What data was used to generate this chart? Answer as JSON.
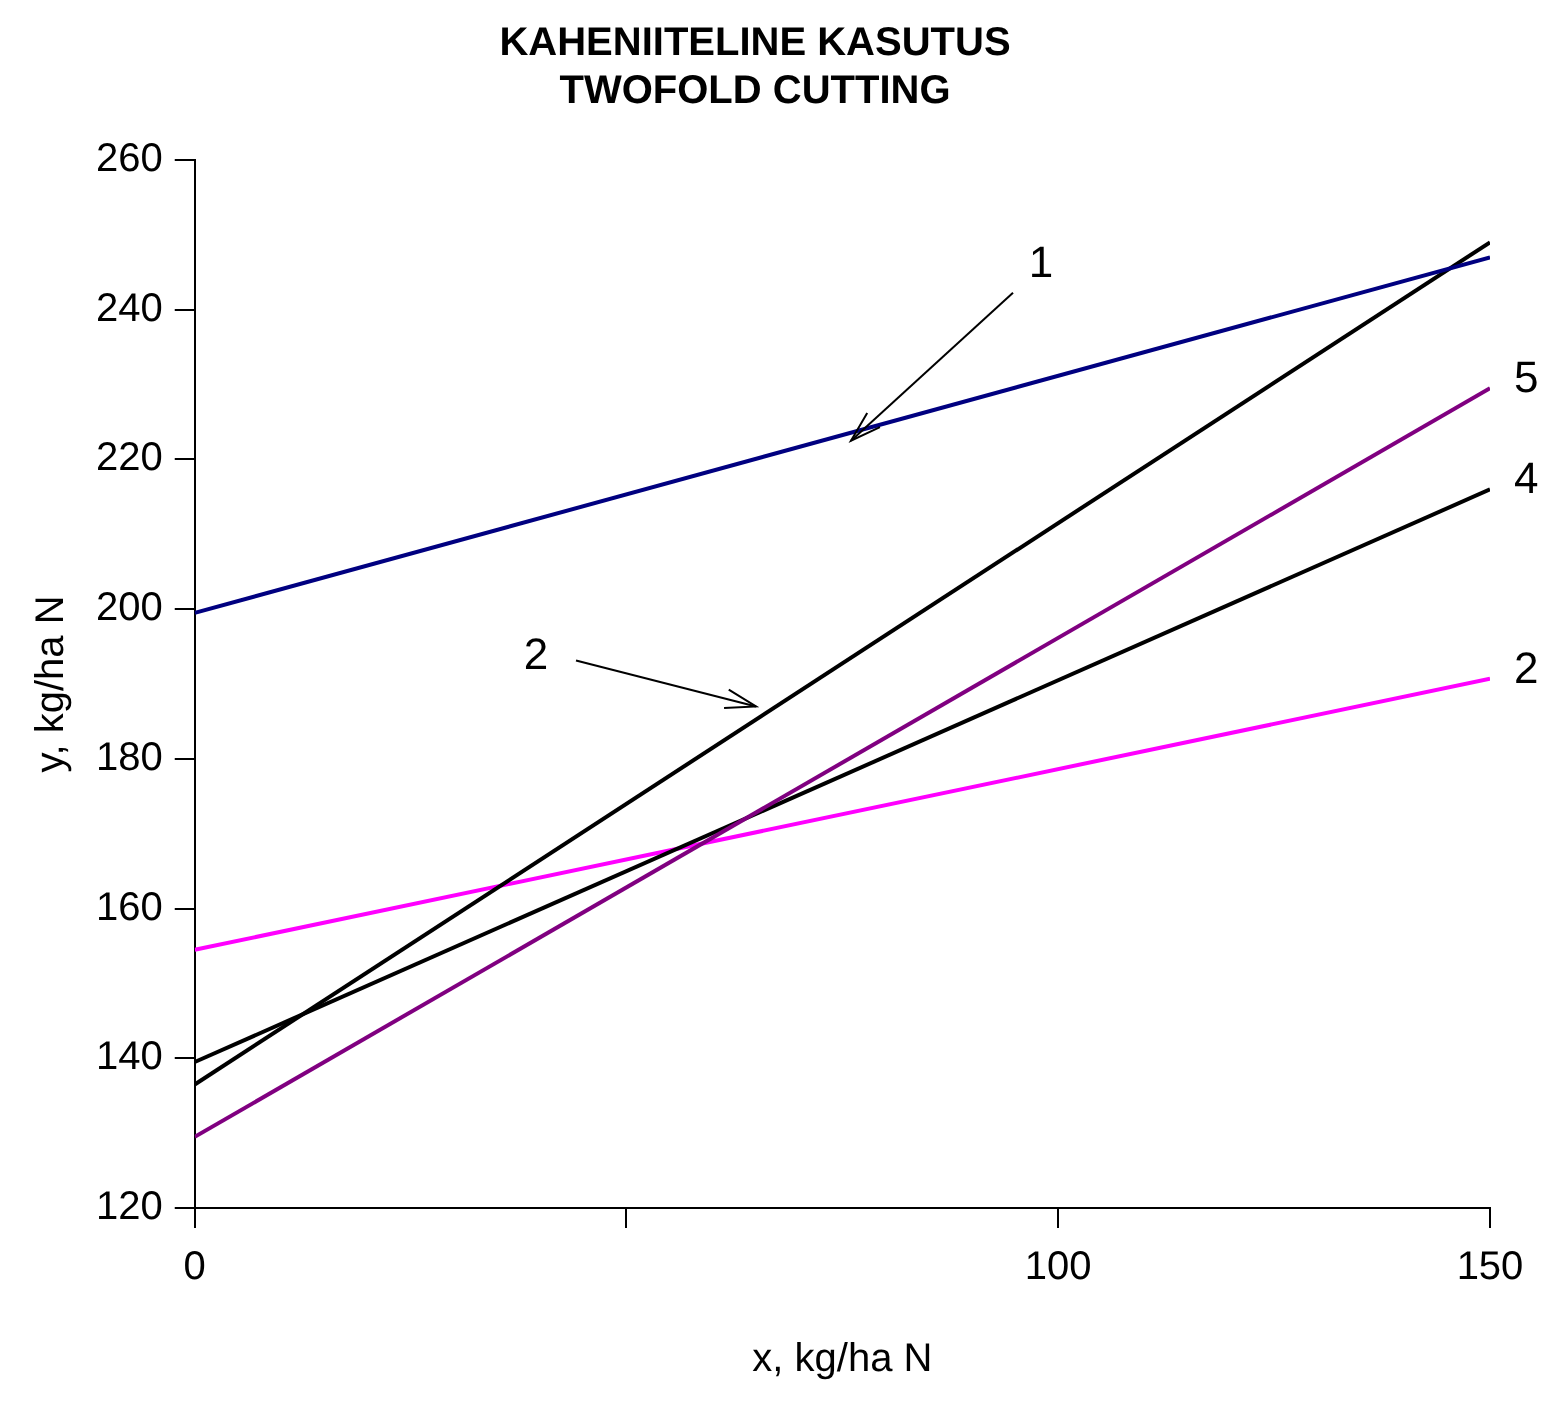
{
  "chart_data": {
    "type": "line",
    "title": "KAHENIITELINE KASUTUS\nTWOFOLD CUTTING",
    "xlabel": "x, kg/ha N",
    "ylabel": "y, kg/ha N",
    "x": [
      0,
      150
    ],
    "series": [
      {
        "color": "#000080",
        "values": [
          199.5,
          247
        ]
      },
      {
        "color": "#000000",
        "values": [
          136.5,
          249
        ]
      },
      {
        "color": "#800080",
        "values": [
          129.5,
          229.5
        ]
      },
      {
        "color": "#000000",
        "values": [
          139.5,
          216
        ]
      },
      {
        "color": "#ff00ff",
        "values": [
          154.5,
          190.7
        ]
      }
    ],
    "xlim": [
      0,
      150
    ],
    "xticks": [
      0,
      {
        "value": 50,
        "label": null
      },
      100,
      150
    ],
    "ylim": [
      120,
      260
    ],
    "yticks": [
      120,
      140,
      160,
      180,
      200,
      220,
      240,
      260
    ],
    "grid": false,
    "legend": false,
    "marker": "none",
    "line_style": "solid",
    "annotations": [
      {
        "text": "1",
        "x": 76,
        "y": 222.5
      },
      {
        "text": "2",
        "x": 65,
        "y": 187
      },
      {
        "text": "5",
        "x": 150,
        "y": 229.5
      },
      {
        "text": "4",
        "x": 150,
        "y": 216
      },
      {
        "text": "2",
        "x": 150,
        "y": 190.7
      }
    ]
  }
}
